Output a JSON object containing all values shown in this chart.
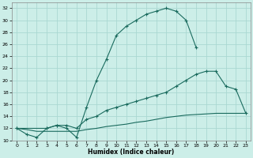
{
  "xlabel": "Humidex (Indice chaleur)",
  "bg_color": "#cceee8",
  "grid_color": "#aad8d2",
  "line_color": "#1a6b5e",
  "xlim": [
    -0.5,
    23.5
  ],
  "ylim": [
    10,
    33
  ],
  "xticks": [
    0,
    1,
    2,
    3,
    4,
    5,
    6,
    7,
    8,
    9,
    10,
    11,
    12,
    13,
    14,
    15,
    16,
    17,
    18,
    19,
    20,
    21,
    22,
    23
  ],
  "yticks": [
    10,
    12,
    14,
    16,
    18,
    20,
    22,
    24,
    26,
    28,
    30,
    32
  ],
  "curve1_x": [
    0,
    1,
    2,
    3,
    4,
    5,
    6,
    7,
    8,
    9,
    10,
    11,
    12,
    13,
    14,
    15,
    16,
    17,
    18
  ],
  "curve1_y": [
    12,
    11,
    10.5,
    12,
    12.5,
    12,
    10.5,
    15.5,
    20,
    23.5,
    27.5,
    29,
    30,
    31,
    31.5,
    32,
    31.5,
    30,
    25.5
  ],
  "curve2_x": [
    0,
    3,
    4,
    5,
    6,
    7,
    8,
    9,
    10,
    11,
    12,
    13,
    14,
    15,
    16,
    17,
    18,
    19,
    20,
    21,
    22,
    23
  ],
  "curve2_y": [
    12,
    12,
    12.5,
    12.5,
    12,
    13.5,
    14,
    15,
    15.5,
    16,
    16.5,
    17,
    17.5,
    18,
    19,
    20,
    21,
    21.5,
    21.5,
    19,
    18.5,
    14.5
  ],
  "curve3_x": [
    0,
    1,
    2,
    3,
    4,
    5,
    6,
    7,
    8,
    9,
    10,
    11,
    12,
    13,
    14,
    15,
    16,
    17,
    18,
    19,
    20,
    21,
    22,
    23
  ],
  "curve3_y": [
    12,
    11.8,
    11.5,
    11.5,
    11.5,
    11.5,
    11.5,
    11.8,
    12,
    12.3,
    12.5,
    12.7,
    13,
    13.2,
    13.5,
    13.8,
    14,
    14.2,
    14.3,
    14.4,
    14.5,
    14.5,
    14.5,
    14.5
  ]
}
